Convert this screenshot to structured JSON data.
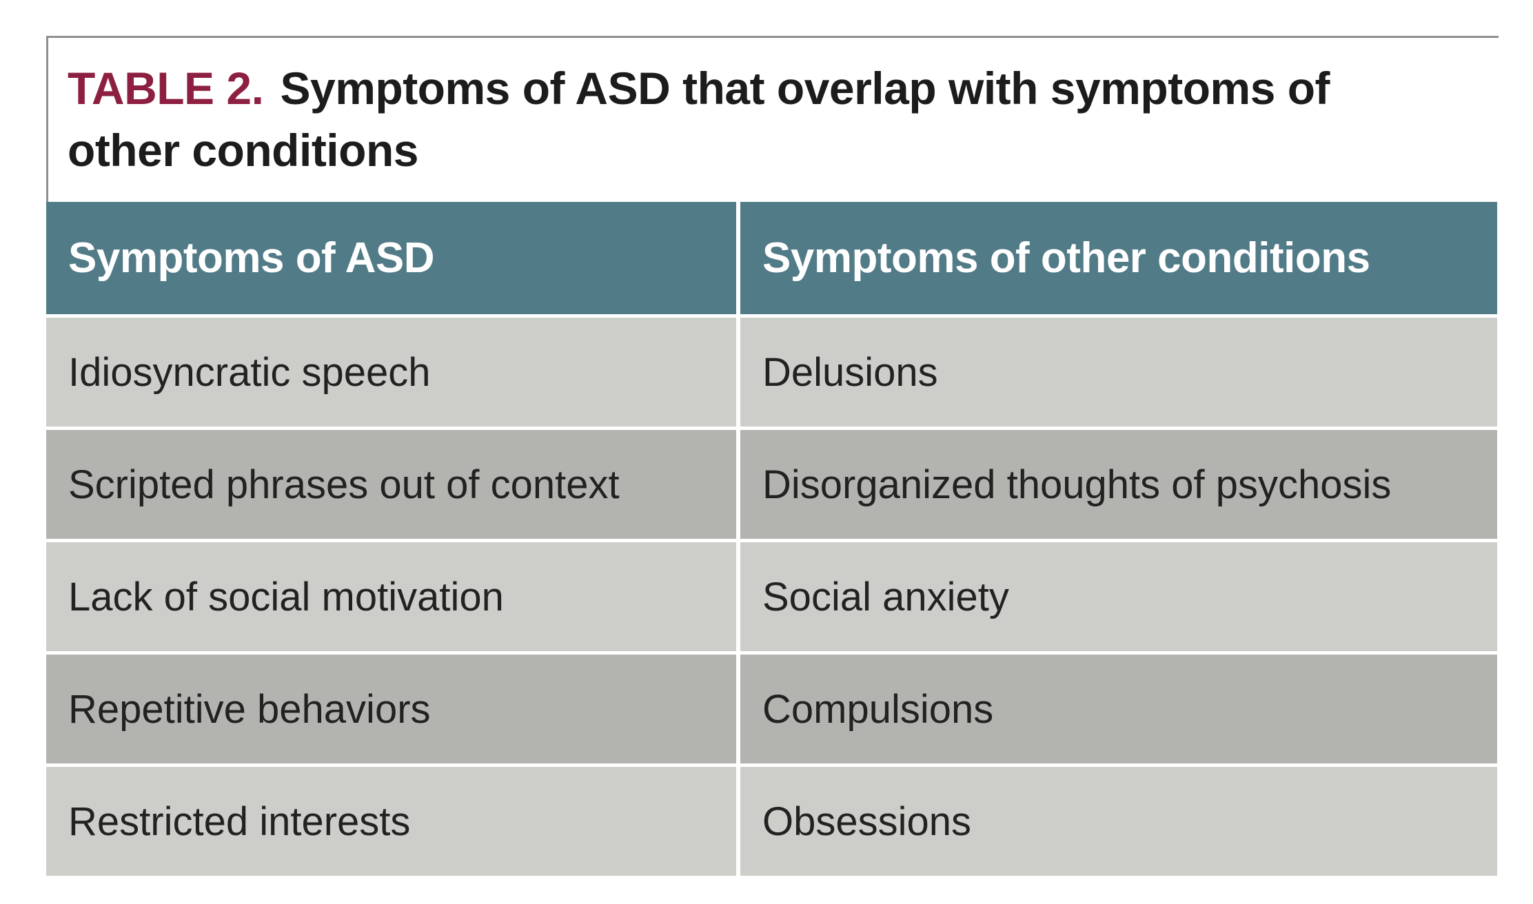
{
  "page": {
    "background": "#ffffff"
  },
  "table": {
    "label": "TABLE 2.",
    "title": "Symptoms of ASD that overlap with symptoms of other conditions",
    "columns": [
      "Symptoms of ASD",
      "Symptoms of other conditions"
    ],
    "rows": [
      [
        "Idiosyncratic speech",
        "Delusions"
      ],
      [
        "Scripted phrases out of context",
        "Disorganized thoughts of psychosis"
      ],
      [
        "Lack of social motivation",
        "Social anxiety"
      ],
      [
        "Repetitive behaviors",
        "Compulsions"
      ],
      [
        "Restricted interests",
        "Obsessions"
      ]
    ],
    "colors": {
      "header_bg": "#527b88",
      "header_text": "#ffffff",
      "row_light": "#cdcec9",
      "row_dark": "#b3b4af",
      "label_accent": "#8d2040",
      "title_text": "#1c1c1c",
      "cell_text": "#222222",
      "border": "#8f8f8f",
      "page_bg": "#ffffff"
    }
  }
}
